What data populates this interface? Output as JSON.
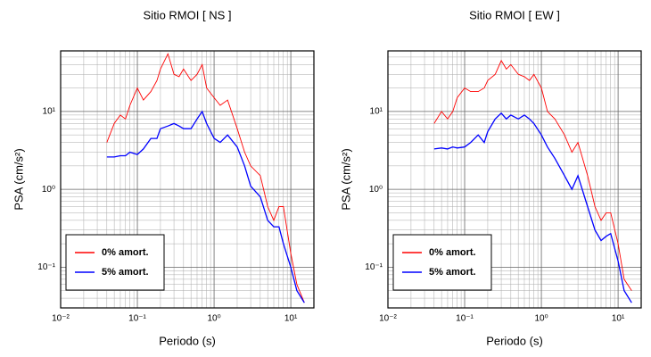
{
  "chart_data": [
    {
      "type": "line",
      "title": "Sitio RMOI [ NS ]",
      "x_label": "Periodo (s)",
      "y_label": "PSA (cm/s²)",
      "x_scale": "log",
      "y_scale": "log",
      "grid": true,
      "legend": "lower left",
      "xlim": [
        0.01,
        20
      ],
      "ylim": [
        0.03,
        60
      ],
      "xticks": [
        {
          "value": 0.01,
          "label": "10⁻²"
        },
        {
          "value": 0.1,
          "label": "10⁻¹"
        },
        {
          "value": 1,
          "label": "10⁰"
        },
        {
          "value": 10,
          "label": "10¹"
        }
      ],
      "yticks": [
        {
          "value": 0.1,
          "label": "10⁻¹"
        },
        {
          "value": 1,
          "label": "10⁰"
        },
        {
          "value": 10,
          "label": "10¹"
        }
      ],
      "x": [
        0.04,
        0.05,
        0.06,
        0.07,
        0.08,
        0.1,
        0.12,
        0.15,
        0.18,
        0.2,
        0.25,
        0.3,
        0.35,
        0.4,
        0.5,
        0.6,
        0.7,
        0.8,
        1,
        1.2,
        1.5,
        2,
        2.5,
        3,
        4,
        5,
        6,
        7,
        8,
        10,
        12,
        15
      ],
      "series": [
        {
          "name": "0% amort.",
          "color": "#ff0000",
          "values": [
            4,
            7,
            9,
            8,
            12,
            20,
            14,
            18,
            25,
            35,
            55,
            30,
            28,
            35,
            25,
            30,
            40,
            20,
            15,
            12,
            14,
            6,
            3,
            2,
            1.5,
            0.6,
            0.4,
            0.6,
            0.6,
            0.15,
            0.06,
            0.035
          ]
        },
        {
          "name": "5% amort.",
          "color": "#0000ff",
          "values": [
            2.6,
            2.6,
            2.7,
            2.7,
            3,
            2.8,
            3.3,
            4.5,
            4.5,
            6,
            6.5,
            7,
            6.5,
            6,
            6,
            8,
            10,
            7,
            4.5,
            4,
            5,
            3.5,
            2,
            1.1,
            0.8,
            0.4,
            0.33,
            0.33,
            0.2,
            0.1,
            0.05,
            0.035
          ]
        }
      ]
    },
    {
      "type": "line",
      "title": "Sitio RMOI [ EW ]",
      "x_label": "Periodo (s)",
      "y_label": "PSA (cm/s²)",
      "x_scale": "log",
      "y_scale": "log",
      "grid": true,
      "legend": "lower left",
      "xlim": [
        0.01,
        20
      ],
      "ylim": [
        0.03,
        60
      ],
      "xticks": [
        {
          "value": 0.01,
          "label": "10⁻²"
        },
        {
          "value": 0.1,
          "label": "10⁻¹"
        },
        {
          "value": 1,
          "label": "10⁰"
        },
        {
          "value": 10,
          "label": "10¹"
        }
      ],
      "yticks": [
        {
          "value": 0.1,
          "label": "10⁻¹"
        },
        {
          "value": 1,
          "label": "10⁰"
        },
        {
          "value": 10,
          "label": "10¹"
        }
      ],
      "x": [
        0.04,
        0.05,
        0.06,
        0.07,
        0.08,
        0.1,
        0.12,
        0.15,
        0.18,
        0.2,
        0.25,
        0.3,
        0.35,
        0.4,
        0.5,
        0.6,
        0.7,
        0.8,
        1,
        1.2,
        1.5,
        2,
        2.5,
        3,
        4,
        5,
        6,
        7,
        8,
        10,
        12,
        15
      ],
      "series": [
        {
          "name": "0% amort.",
          "color": "#ff0000",
          "values": [
            7,
            10,
            8,
            10,
            15,
            20,
            18,
            18,
            20,
            25,
            30,
            45,
            35,
            40,
            30,
            28,
            25,
            30,
            20,
            10,
            8,
            5,
            3,
            4,
            1.5,
            0.6,
            0.4,
            0.5,
            0.5,
            0.2,
            0.07,
            0.05
          ]
        },
        {
          "name": "5% amort.",
          "color": "#0000ff",
          "values": [
            3.3,
            3.4,
            3.3,
            3.5,
            3.4,
            3.5,
            4,
            5,
            4,
            5.5,
            8,
            9.5,
            8,
            9,
            8,
            9,
            8,
            7,
            5,
            3.5,
            2.5,
            1.5,
            1,
            1.5,
            0.6,
            0.3,
            0.22,
            0.25,
            0.27,
            0.12,
            0.05,
            0.035
          ]
        }
      ]
    }
  ]
}
